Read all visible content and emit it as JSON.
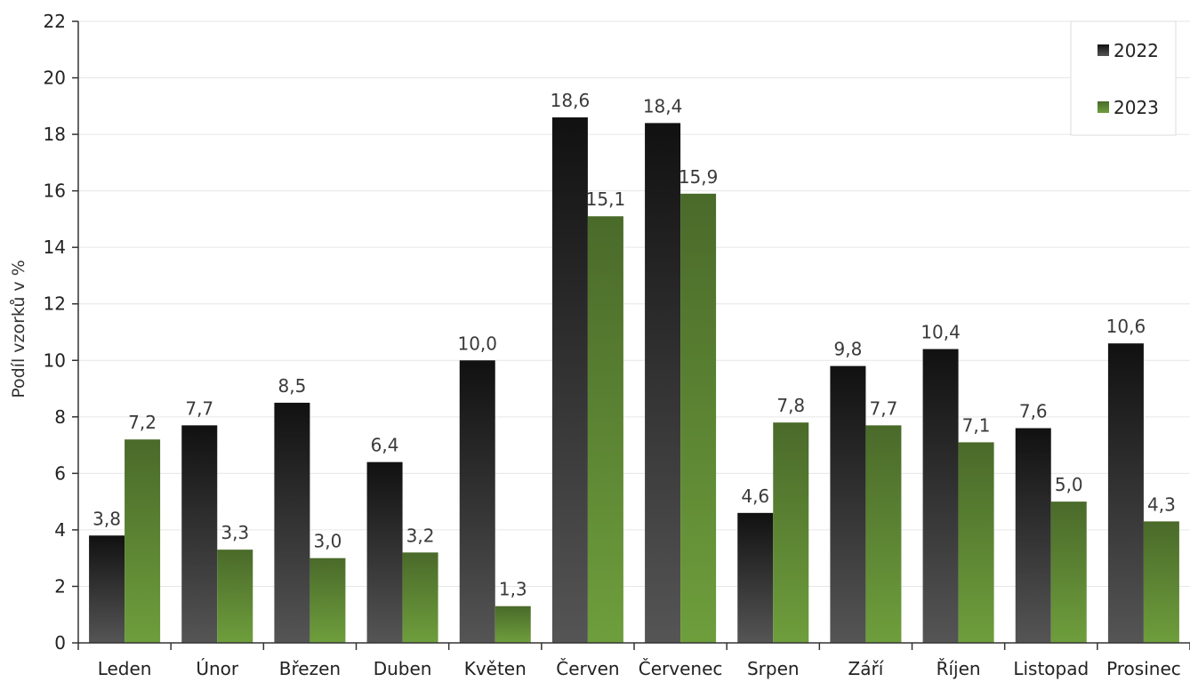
{
  "chart_data": {
    "type": "bar",
    "title": "",
    "xlabel": "",
    "ylabel": "Podíl vzorků v %",
    "ylim": [
      0,
      22
    ],
    "yticks": [
      0,
      2,
      4,
      6,
      8,
      10,
      12,
      14,
      16,
      18,
      20,
      22
    ],
    "grid": true,
    "legend_position": "top-right",
    "categories": [
      "Leden",
      "Únor",
      "Březen",
      "Duben",
      "Květen",
      "Červen",
      "Červenec",
      "Srpen",
      "Září",
      "Říjen",
      "Listopad",
      "Prosinec"
    ],
    "series": [
      {
        "name": "2022",
        "color": "#1a1a1a",
        "color_bottom": "#555555",
        "values": [
          3.8,
          7.7,
          8.5,
          6.4,
          10.0,
          18.6,
          18.4,
          4.6,
          9.8,
          10.4,
          7.6,
          10.6
        ],
        "labels": [
          "3,8",
          "7,7",
          "8,5",
          "6,4",
          "10,0",
          "18,6",
          "18,4",
          "4,6",
          "9,8",
          "10,4",
          "7,6",
          "10,6"
        ]
      },
      {
        "name": "2023",
        "color": "#4a6a2a",
        "color_bottom": "#6a9a3a",
        "values": [
          7.2,
          3.3,
          3.0,
          3.2,
          1.3,
          15.1,
          15.9,
          7.8,
          7.7,
          7.1,
          5.0,
          4.3
        ],
        "labels": [
          "7,2",
          "3,3",
          "3,0",
          "3,2",
          "1,3",
          "15,1",
          "15,9",
          "7,8",
          "7,7",
          "7,1",
          "5,0",
          "4,3"
        ]
      }
    ]
  }
}
